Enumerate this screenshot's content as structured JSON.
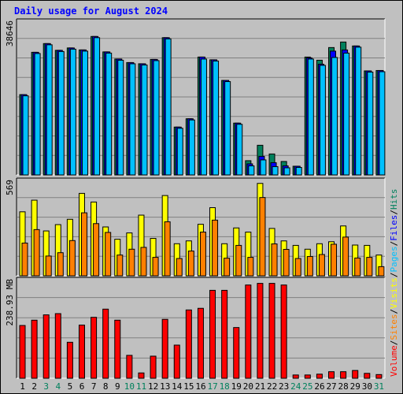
{
  "title": "Daily usage for August 2024",
  "colors": {
    "hits": "#00805c",
    "files": "#0000ff",
    "pages": "#00c0ff",
    "visits": "#ffff00",
    "sites": "#ff8000",
    "kbytes": "#ff0000",
    "weekend_label": "#00805c",
    "title": "#0000ff",
    "background": "#c0c0c0"
  },
  "right_legend": {
    "volume": "Volume",
    "sep1": "/",
    "sites": "Sites",
    "sep2": "/",
    "visits": "Visits",
    "sep3": "/",
    "pages": "Pages",
    "sep4": "/",
    "files": "Files",
    "sep5": "/",
    "hits": "Hits"
  },
  "chart_data": {
    "type": "bar",
    "title": "Daily usage for August 2024",
    "categories": [
      "1",
      "2",
      "3",
      "4",
      "5",
      "6",
      "7",
      "8",
      "9",
      "10",
      "11",
      "12",
      "13",
      "14",
      "15",
      "16",
      "17",
      "18",
      "19",
      "20",
      "21",
      "22",
      "23",
      "24",
      "25",
      "26",
      "27",
      "28",
      "29",
      "30",
      "31"
    ],
    "weekend_days": [
      "3",
      "4",
      "10",
      "11",
      "17",
      "18",
      "24",
      "25",
      "31"
    ],
    "panels": [
      {
        "name": "hits-files-pages",
        "max_label": "38646",
        "ymax": 38646,
        "series": [
          {
            "name": "Hits",
            "values": [
              20300,
              31000,
              33200,
              31500,
              32100,
              31600,
              35000,
              31100,
              29300,
              28400,
              28100,
              29200,
              34700,
              12100,
              14200,
              29800,
              29100,
              23900,
              13100,
              3600,
              7500,
              5300,
              3400,
              2200,
              29800,
              29000,
              32200,
              33600,
              32600,
              26300,
              26400
            ]
          },
          {
            "name": "Files",
            "values": [
              20300,
              31000,
              33200,
              31500,
              32100,
              31600,
              35000,
              31100,
              29300,
              28400,
              28100,
              29200,
              34700,
              12100,
              14200,
              29800,
              29100,
              23900,
              13100,
              2800,
              4700,
              3100,
              2300,
              2200,
              29600,
              28000,
              31300,
              31600,
              32600,
              26300,
              26400
            ]
          },
          {
            "name": "Pages",
            "values": [
              20000,
              30700,
              32900,
              31200,
              31800,
              31300,
              34700,
              30800,
              29000,
              28100,
              27800,
              28900,
              34400,
              11800,
              13900,
              29300,
              28800,
              23600,
              12800,
              2300,
              3800,
              2100,
              1800,
              1900,
              29300,
              27700,
              29700,
              30800,
              32300,
              26000,
              26100
            ]
          }
        ]
      },
      {
        "name": "visits-sites",
        "max_label": "569",
        "ymax": 569,
        "series": [
          {
            "name": "Visits",
            "values": [
              385,
              455,
              270,
              308,
              340,
              496,
              444,
              294,
              220,
              258,
              365,
              225,
              483,
              193,
              210,
              310,
              410,
              193,
              288,
              263,
              556,
              285,
              210,
              183,
              160,
              193,
              205,
              300,
              185,
              183,
              125
            ]
          },
          {
            "name": "Sites",
            "values": [
              197,
              278,
              119,
              139,
              212,
              379,
              314,
              261,
              125,
              160,
              171,
              111,
              325,
              104,
              149,
              263,
              335,
              106,
              183,
              111,
              471,
              192,
              159,
              104,
              116,
              128,
              190,
              233,
              107,
              111,
              55
            ]
          }
        ]
      },
      {
        "name": "volume",
        "max_label": "238.93 MB",
        "ymax": 238.93,
        "series": [
          {
            "name": "KBytes",
            "values": [
              129,
              142,
              155,
              158,
              88,
              130,
              149,
              169,
              142,
              56,
              13,
              54,
              144,
              81,
              167,
              171,
              215,
              215,
              124,
              228,
              232,
              232,
              228,
              8,
              8,
              10,
              16,
              16,
              19,
              12,
              9
            ]
          }
        ]
      }
    ]
  }
}
